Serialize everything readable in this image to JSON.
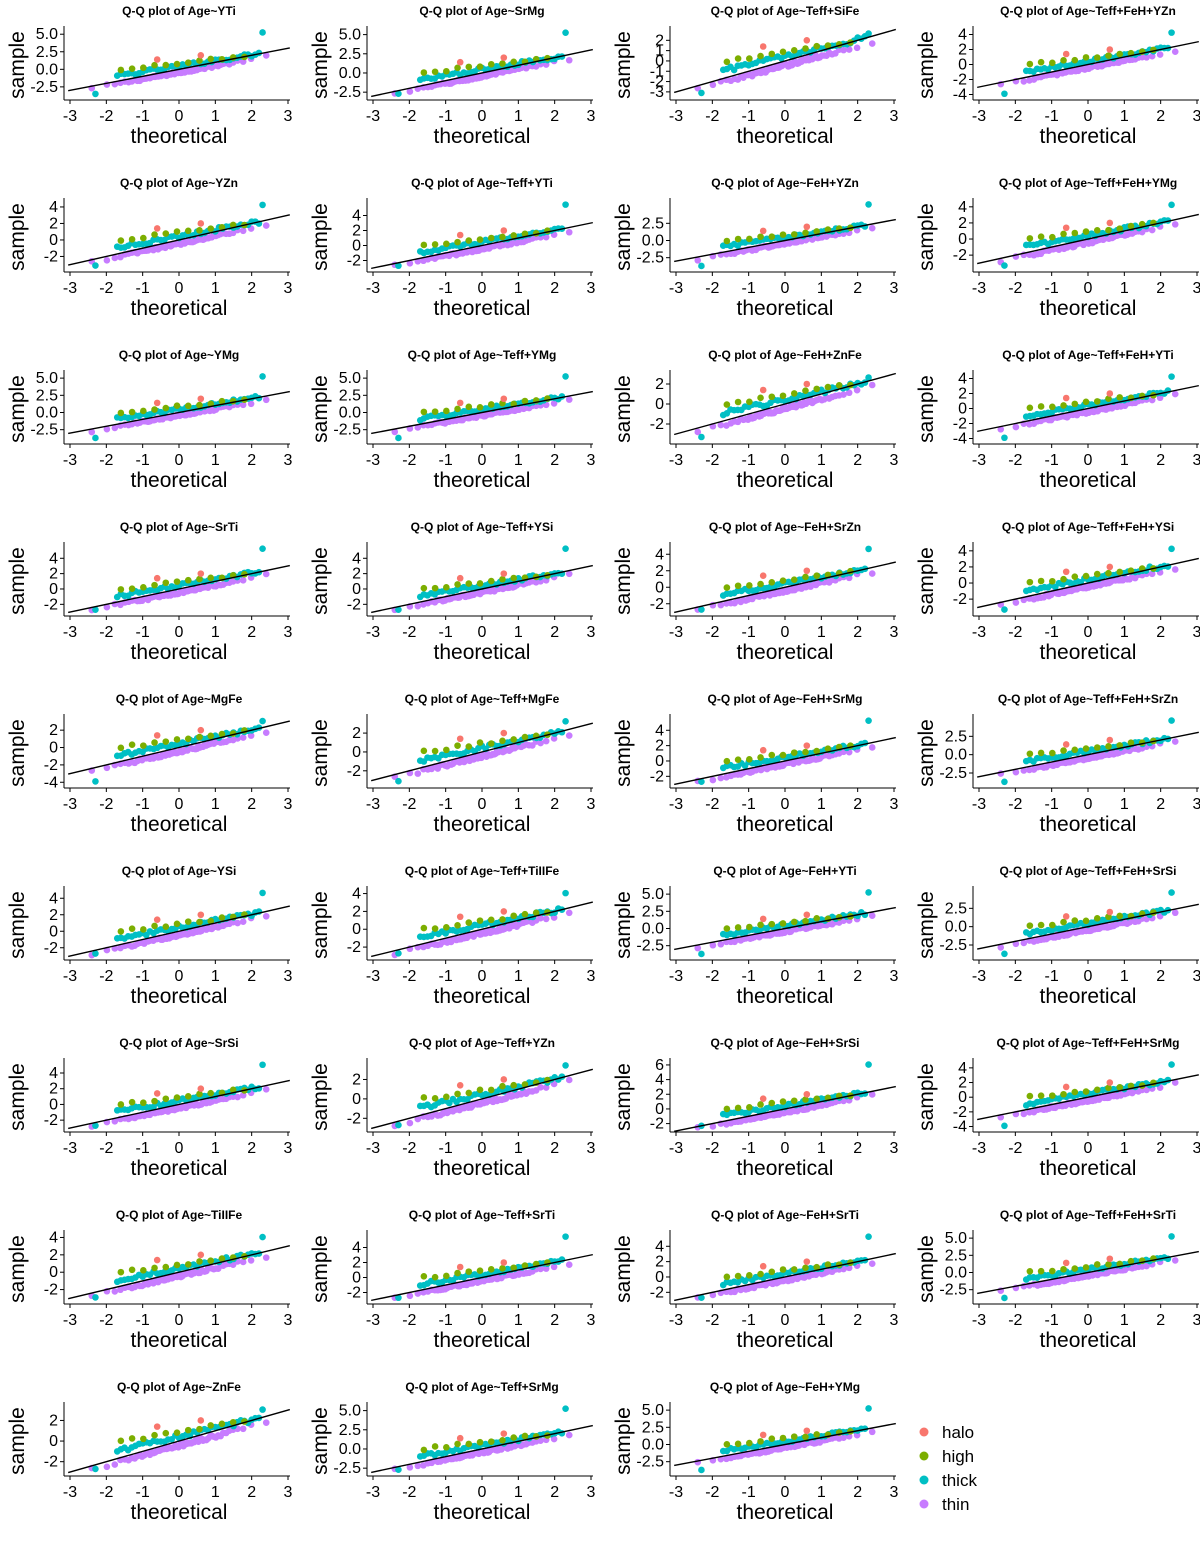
{
  "chart_data": {
    "type": "scatter",
    "description_kind": "qq-grid",
    "title_prefix": "Q-Q plot of",
    "xlabel": "theoretical",
    "ylabel": "sample",
    "xlim": [
      -3,
      3
    ],
    "x_ticks": [
      -3,
      -2,
      -1,
      0,
      1,
      2,
      3
    ],
    "legend": {
      "placement": "bottom-right",
      "entries": [
        {
          "name": "halo",
          "color": "#F8766D"
        },
        {
          "name": "high",
          "color": "#7CAE00"
        },
        {
          "name": "thick",
          "color": "#00BFC4"
        },
        {
          "name": "thin",
          "color": "#C77CFF"
        }
      ]
    },
    "panels": [
      {
        "title": "Age~YTi",
        "yticks": [
          "5.0",
          "2.5",
          "0.0",
          "-2.5"
        ],
        "ylim": [
          -3.8,
          5.6
        ]
      },
      {
        "title": "Age~SrMg",
        "yticks": [
          "5.0",
          "2.5",
          "0.0",
          "-2.5"
        ],
        "ylim": [
          -3.0,
          5.6
        ]
      },
      {
        "title": "Age~Teff+SiFe",
        "yticks": [
          "2",
          "1",
          "0",
          "-1",
          "-2",
          "-3"
        ],
        "ylim": [
          -3.4,
          3.0
        ]
      },
      {
        "title": "Age~Teff+FeH+YZn",
        "yticks": [
          "4",
          "2",
          "0",
          "-2",
          "-4"
        ],
        "ylim": [
          -4.2,
          4.6
        ]
      },
      {
        "title": "Age~YZn",
        "yticks": [
          "4",
          "2",
          "0",
          "-2"
        ],
        "ylim": [
          -3.4,
          4.6
        ]
      },
      {
        "title": "Age~Teff+YTi",
        "yticks": [
          "4",
          "2",
          "0",
          "-2"
        ],
        "ylim": [
          -3.0,
          5.8
        ]
      },
      {
        "title": "Age~FeH+YZn",
        "yticks": [
          "2.5",
          "0.0",
          "-2.5"
        ],
        "ylim": [
          -4.0,
          5.6
        ]
      },
      {
        "title": "Age~Teff+FeH+YMg",
        "yticks": [
          "4",
          "2",
          "0",
          "-2"
        ],
        "ylim": [
          -3.6,
          4.6
        ]
      },
      {
        "title": "Age~YMg",
        "yticks": [
          "5.0",
          "2.5",
          "0.0",
          "-2.5"
        ],
        "ylim": [
          -4.0,
          5.6
        ]
      },
      {
        "title": "Age~Teff+YMg",
        "yticks": [
          "5.0",
          "2.5",
          "0.0",
          "-2.5"
        ],
        "ylim": [
          -4.0,
          5.6
        ]
      },
      {
        "title": "Age~FeH+ZnFe",
        "yticks": [
          "2",
          "0",
          "-2"
        ],
        "ylim": [
          -3.6,
          3.0
        ]
      },
      {
        "title": "Age~Teff+FeH+YTi",
        "yticks": [
          "4",
          "2",
          "0",
          "-2",
          "-4"
        ],
        "ylim": [
          -4.2,
          4.6
        ]
      },
      {
        "title": "Age~SrTi",
        "yticks": [
          "4",
          "2",
          "0",
          "-2"
        ],
        "ylim": [
          -3.0,
          5.6
        ]
      },
      {
        "title": "Age~Teff+YSi",
        "yticks": [
          "4",
          "2",
          "0",
          "-2"
        ],
        "ylim": [
          -3.0,
          5.6
        ]
      },
      {
        "title": "Age~FeH+SrZn",
        "yticks": [
          "4",
          "2",
          "0",
          "-2"
        ],
        "ylim": [
          -3.0,
          5.0
        ]
      },
      {
        "title": "Age~Teff+FeH+YSi",
        "yticks": [
          "4",
          "2",
          "0",
          "-2"
        ],
        "ylim": [
          -3.6,
          4.6
        ]
      },
      {
        "title": "Age~MgFe",
        "yticks": [
          "2",
          "0",
          "-2",
          "-4"
        ],
        "ylim": [
          -4.2,
          3.4
        ]
      },
      {
        "title": "Age~Teff+MgFe",
        "yticks": [
          "2",
          "0",
          "-2"
        ],
        "ylim": [
          -3.4,
          3.6
        ]
      },
      {
        "title": "Age~FeH+SrMg",
        "yticks": [
          "4",
          "2",
          "0",
          "-2"
        ],
        "ylim": [
          -3.0,
          5.6
        ]
      },
      {
        "title": "Age~Teff+FeH+SrZn",
        "yticks": [
          "2.5",
          "0.0",
          "-2.5"
        ],
        "ylim": [
          -4.0,
          5.0
        ]
      },
      {
        "title": "Age~YSi",
        "yticks": [
          "4",
          "2",
          "0",
          "-2"
        ],
        "ylim": [
          -3.0,
          5.0
        ]
      },
      {
        "title": "Age~Teff+TiIIFe",
        "yticks": [
          "4",
          "2",
          "0",
          "-2"
        ],
        "ylim": [
          -3.0,
          4.4
        ]
      },
      {
        "title": "Age~FeH+YTi",
        "yticks": [
          "5.0",
          "2.5",
          "0.0",
          "-2.5"
        ],
        "ylim": [
          -4.0,
          5.6
        ]
      },
      {
        "title": "Age~Teff+FeH+SrSi",
        "yticks": [
          "2.5",
          "0.0",
          "-2.5"
        ],
        "ylim": [
          -4.0,
          5.0
        ]
      },
      {
        "title": "Age~SrSi",
        "yticks": [
          "4",
          "2",
          "0",
          "-2"
        ],
        "ylim": [
          -3.0,
          5.4
        ]
      },
      {
        "title": "Age~Teff+YZn",
        "yticks": [
          "2",
          "0",
          "-2"
        ],
        "ylim": [
          -3.0,
          3.8
        ]
      },
      {
        "title": "Age~FeH+SrSi",
        "yticks": [
          "6",
          "4",
          "2",
          "0",
          "-2"
        ],
        "ylim": [
          -2.6,
          6.4
        ]
      },
      {
        "title": "Age~Teff+FeH+SrMg",
        "yticks": [
          "4",
          "2",
          "0",
          "-2",
          "-4"
        ],
        "ylim": [
          -4.2,
          4.8
        ]
      },
      {
        "title": "Age~TiIIFe",
        "yticks": [
          "4",
          "2",
          "0",
          "-2"
        ],
        "ylim": [
          -3.2,
          4.4
        ]
      },
      {
        "title": "Age~Teff+SrTi",
        "yticks": [
          "4",
          "2",
          "0",
          "-2"
        ],
        "ylim": [
          -3.0,
          5.8
        ]
      },
      {
        "title": "Age~FeH+SrTi",
        "yticks": [
          "4",
          "2",
          "0",
          "-2"
        ],
        "ylim": [
          -3.0,
          5.6
        ]
      },
      {
        "title": "Age~Teff+FeH+SrTi",
        "yticks": [
          "5.0",
          "2.5",
          "0.0",
          "-2.5"
        ],
        "ylim": [
          -4.0,
          5.6
        ]
      },
      {
        "title": "Age~ZnFe",
        "yticks": [
          "2",
          "0",
          "-2"
        ],
        "ylim": [
          -3.0,
          3.4
        ]
      },
      {
        "title": "Age~Teff+SrMg",
        "yticks": [
          "5.0",
          "2.5",
          "0.0",
          "-2.5"
        ],
        "ylim": [
          -3.0,
          5.6
        ]
      },
      {
        "title": "Age~FeH+YMg",
        "yticks": [
          "5.0",
          "2.5",
          "0.0",
          "-2.5"
        ],
        "ylim": [
          -4.0,
          5.6
        ]
      }
    ]
  }
}
